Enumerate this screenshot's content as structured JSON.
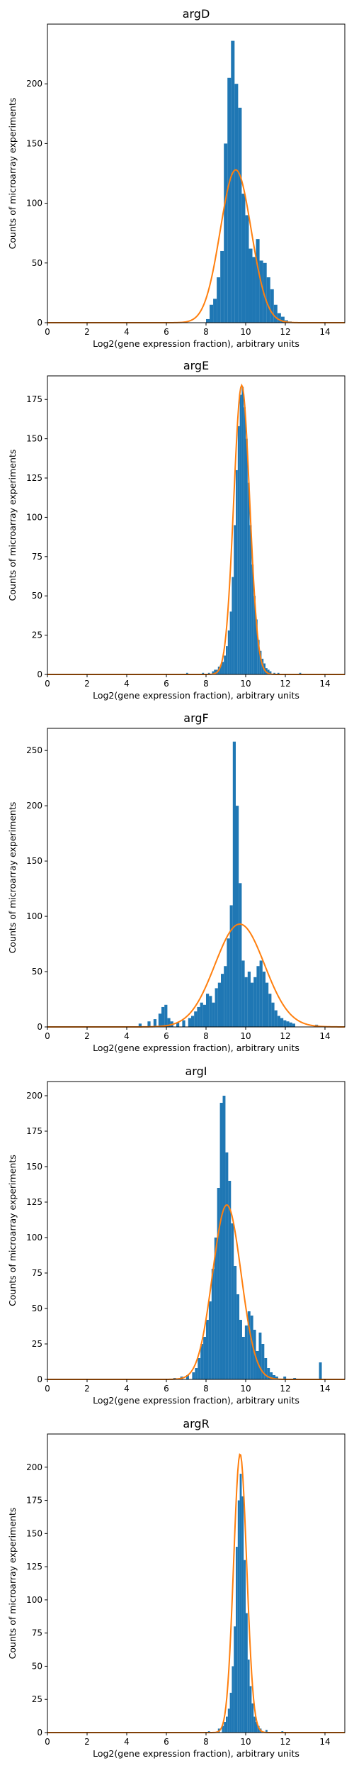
{
  "chart_data": [
    {
      "type": "bar",
      "title": "argD",
      "xlabel": "Log2(gene expression fraction), arbitrary units",
      "ylabel": "Counts of microarray experiments",
      "xlim": [
        0,
        15
      ],
      "ylim": [
        0,
        250
      ],
      "xticks": [
        0,
        2,
        4,
        6,
        8,
        10,
        12,
        14
      ],
      "yticks": [
        0,
        50,
        100,
        150,
        200
      ],
      "bin_width": 0.18,
      "bins": [
        [
          8.0,
          3
        ],
        [
          8.18,
          15
        ],
        [
          8.36,
          20
        ],
        [
          8.54,
          38
        ],
        [
          8.72,
          60
        ],
        [
          8.9,
          150
        ],
        [
          9.08,
          205
        ],
        [
          9.26,
          236
        ],
        [
          9.44,
          200
        ],
        [
          9.62,
          180
        ],
        [
          9.8,
          108
        ],
        [
          9.98,
          90
        ],
        [
          10.16,
          62
        ],
        [
          10.34,
          55
        ],
        [
          10.52,
          70
        ],
        [
          10.7,
          52
        ],
        [
          10.88,
          50
        ],
        [
          11.06,
          38
        ],
        [
          11.24,
          28
        ],
        [
          11.42,
          15
        ],
        [
          11.6,
          8
        ],
        [
          11.78,
          5
        ],
        [
          11.96,
          2
        ],
        [
          12.14,
          1
        ]
      ],
      "fit": {
        "type": "gaussian",
        "mean": 9.5,
        "sd": 0.78,
        "peak": 128
      },
      "bar_color": "#1f77b4",
      "fit_color": "#ff7f0e"
    },
    {
      "type": "bar",
      "title": "argE",
      "xlabel": "Log2(gene expression fraction), arbitrary units",
      "ylabel": "Counts of microarray experiments",
      "xlim": [
        0,
        15
      ],
      "ylim": [
        0,
        190
      ],
      "xticks": [
        0,
        2,
        4,
        6,
        8,
        10,
        12,
        14
      ],
      "yticks": [
        0,
        25,
        50,
        75,
        100,
        125,
        150,
        175
      ],
      "bin_width": 0.1,
      "bins": [
        [
          7.0,
          1
        ],
        [
          7.8,
          1
        ],
        [
          8.1,
          1
        ],
        [
          8.3,
          2
        ],
        [
          8.4,
          3
        ],
        [
          8.5,
          3
        ],
        [
          8.6,
          5
        ],
        [
          8.7,
          6
        ],
        [
          8.8,
          8
        ],
        [
          8.9,
          12
        ],
        [
          9.0,
          18
        ],
        [
          9.1,
          28
        ],
        [
          9.2,
          40
        ],
        [
          9.3,
          62
        ],
        [
          9.4,
          95
        ],
        [
          9.5,
          130
        ],
        [
          9.6,
          158
        ],
        [
          9.7,
          178
        ],
        [
          9.8,
          183
        ],
        [
          9.9,
          170
        ],
        [
          10.0,
          150
        ],
        [
          10.1,
          122
        ],
        [
          10.2,
          95
        ],
        [
          10.3,
          70
        ],
        [
          10.4,
          50
        ],
        [
          10.5,
          35
        ],
        [
          10.6,
          22
        ],
        [
          10.7,
          15
        ],
        [
          10.8,
          10
        ],
        [
          10.9,
          7
        ],
        [
          11.0,
          4
        ],
        [
          11.1,
          3
        ],
        [
          11.2,
          2
        ],
        [
          11.4,
          1
        ],
        [
          11.6,
          1
        ],
        [
          12.7,
          1
        ]
      ],
      "fit": {
        "type": "gaussian",
        "mean": 9.8,
        "sd": 0.4,
        "peak": 184
      },
      "bar_color": "#1f77b4",
      "fit_color": "#ff7f0e"
    },
    {
      "type": "bar",
      "title": "argF",
      "xlabel": "Log2(gene expression fraction), arbitrary units",
      "ylabel": "Counts of microarray experiments",
      "xlim": [
        0,
        15
      ],
      "ylim": [
        0,
        270
      ],
      "xticks": [
        0,
        2,
        4,
        6,
        8,
        10,
        12,
        14
      ],
      "yticks": [
        0,
        50,
        100,
        150,
        200,
        250
      ],
      "bin_width": 0.15,
      "bins": [
        [
          4.6,
          3
        ],
        [
          5.05,
          5
        ],
        [
          5.35,
          7
        ],
        [
          5.6,
          12
        ],
        [
          5.75,
          18
        ],
        [
          5.9,
          20
        ],
        [
          6.05,
          8
        ],
        [
          6.2,
          5
        ],
        [
          6.5,
          4
        ],
        [
          6.8,
          6
        ],
        [
          7.1,
          8
        ],
        [
          7.25,
          10
        ],
        [
          7.4,
          14
        ],
        [
          7.55,
          18
        ],
        [
          7.7,
          22
        ],
        [
          7.85,
          20
        ],
        [
          8.0,
          30
        ],
        [
          8.15,
          28
        ],
        [
          8.3,
          22
        ],
        [
          8.45,
          35
        ],
        [
          8.6,
          40
        ],
        [
          8.75,
          48
        ],
        [
          8.9,
          55
        ],
        [
          9.05,
          80
        ],
        [
          9.2,
          110
        ],
        [
          9.35,
          258
        ],
        [
          9.5,
          200
        ],
        [
          9.65,
          130
        ],
        [
          9.8,
          60
        ],
        [
          9.95,
          45
        ],
        [
          10.1,
          50
        ],
        [
          10.25,
          40
        ],
        [
          10.4,
          45
        ],
        [
          10.55,
          55
        ],
        [
          10.7,
          60
        ],
        [
          10.85,
          50
        ],
        [
          11.0,
          40
        ],
        [
          11.15,
          30
        ],
        [
          11.3,
          22
        ],
        [
          11.45,
          15
        ],
        [
          11.6,
          10
        ],
        [
          11.75,
          8
        ],
        [
          11.9,
          6
        ],
        [
          12.05,
          5
        ],
        [
          12.2,
          4
        ],
        [
          12.35,
          3
        ],
        [
          13.5,
          2
        ]
      ],
      "fit": {
        "type": "gaussian",
        "mean": 9.7,
        "sd": 1.25,
        "peak": 93
      },
      "bar_color": "#1f77b4",
      "fit_color": "#ff7f0e"
    },
    {
      "type": "bar",
      "title": "argI",
      "xlabel": "Log2(gene expression fraction), arbitrary units",
      "ylabel": "Counts of microarray experiments",
      "xlim": [
        0,
        15
      ],
      "ylim": [
        0,
        210
      ],
      "xticks": [
        0,
        2,
        4,
        6,
        8,
        10,
        12,
        14
      ],
      "yticks": [
        0,
        25,
        50,
        75,
        100,
        125,
        150,
        175,
        200
      ],
      "bin_width": 0.14,
      "bins": [
        [
          6.35,
          1
        ],
        [
          6.7,
          2
        ],
        [
          7.0,
          3
        ],
        [
          7.3,
          5
        ],
        [
          7.44,
          8
        ],
        [
          7.58,
          15
        ],
        [
          7.72,
          25
        ],
        [
          7.86,
          30
        ],
        [
          8.0,
          42
        ],
        [
          8.14,
          55
        ],
        [
          8.28,
          78
        ],
        [
          8.42,
          100
        ],
        [
          8.56,
          135
        ],
        [
          8.7,
          195
        ],
        [
          8.84,
          200
        ],
        [
          8.98,
          160
        ],
        [
          9.12,
          140
        ],
        [
          9.26,
          110
        ],
        [
          9.4,
          80
        ],
        [
          9.54,
          60
        ],
        [
          9.68,
          42
        ],
        [
          9.82,
          30
        ],
        [
          9.96,
          38
        ],
        [
          10.1,
          48
        ],
        [
          10.24,
          45
        ],
        [
          10.38,
          35
        ],
        [
          10.52,
          20
        ],
        [
          10.66,
          33
        ],
        [
          10.8,
          25
        ],
        [
          10.94,
          15
        ],
        [
          11.08,
          8
        ],
        [
          11.22,
          5
        ],
        [
          11.36,
          3
        ],
        [
          11.5,
          2
        ],
        [
          11.9,
          2
        ],
        [
          12.4,
          1
        ],
        [
          13.7,
          12
        ]
      ],
      "fit": {
        "type": "gaussian",
        "mean": 9.05,
        "sd": 0.72,
        "peak": 123
      },
      "bar_color": "#1f77b4",
      "fit_color": "#ff7f0e"
    },
    {
      "type": "bar",
      "title": "argR",
      "xlabel": "Log2(gene expression fraction), arbitrary units",
      "ylabel": "Counts of microarray experiments",
      "xlim": [
        0,
        15
      ],
      "ylim": [
        0,
        225
      ],
      "xticks": [
        0,
        2,
        4,
        6,
        8,
        10,
        12,
        14
      ],
      "yticks": [
        0,
        25,
        50,
        75,
        100,
        125,
        150,
        175,
        200
      ],
      "bin_width": 0.1,
      "bins": [
        [
          8.1,
          1
        ],
        [
          8.6,
          3
        ],
        [
          8.8,
          5
        ],
        [
          8.9,
          8
        ],
        [
          9.0,
          12
        ],
        [
          9.1,
          18
        ],
        [
          9.2,
          30
        ],
        [
          9.3,
          50
        ],
        [
          9.4,
          80
        ],
        [
          9.5,
          140
        ],
        [
          9.6,
          175
        ],
        [
          9.7,
          195
        ],
        [
          9.8,
          178
        ],
        [
          9.9,
          130
        ],
        [
          10.0,
          90
        ],
        [
          10.1,
          55
        ],
        [
          10.2,
          35
        ],
        [
          10.3,
          22
        ],
        [
          10.4,
          12
        ],
        [
          10.5,
          8
        ],
        [
          10.6,
          5
        ],
        [
          10.7,
          3
        ],
        [
          11.0,
          2
        ],
        [
          11.8,
          1
        ]
      ],
      "fit": {
        "type": "gaussian",
        "mean": 9.72,
        "sd": 0.33,
        "peak": 210
      },
      "bar_color": "#1f77b4",
      "fit_color": "#ff7f0e"
    }
  ]
}
